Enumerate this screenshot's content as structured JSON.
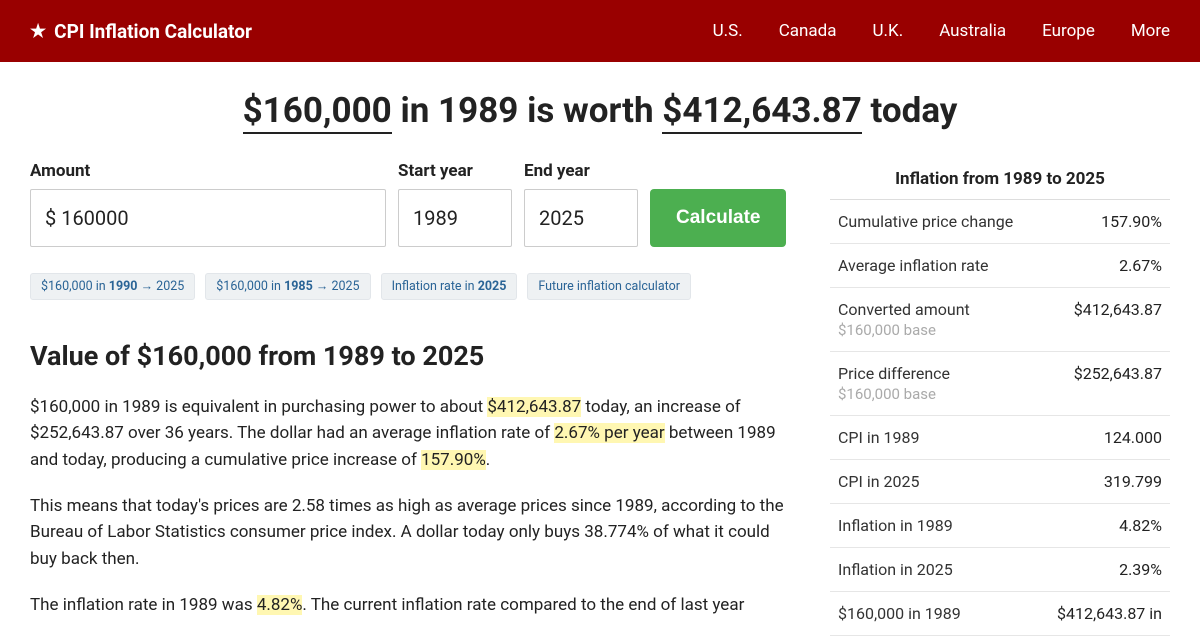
{
  "header": {
    "brand": "CPI Inflation Calculator",
    "nav": [
      "U.S.",
      "Canada",
      "U.K.",
      "Australia",
      "Europe",
      "More"
    ]
  },
  "title": {
    "amount_from": "$160,000",
    "middle": " in 1989 is worth ",
    "amount_to": "$412,643.87",
    "suffix": " today"
  },
  "form": {
    "amount_label": "Amount",
    "amount_value": "$ 160000",
    "start_label": "Start year",
    "start_value": "1989",
    "end_label": "End year",
    "end_value": "2025",
    "button": "Calculate"
  },
  "chips": [
    {
      "pre": "$160,000 in ",
      "b": "1990",
      "post": " → 2025"
    },
    {
      "pre": "$160,000 in ",
      "b": "1985",
      "post": " → 2025"
    },
    {
      "pre": "Inflation rate in ",
      "b": "2025",
      "post": ""
    },
    {
      "pre": "Future inflation calculator",
      "b": "",
      "post": ""
    }
  ],
  "section_heading": "Value of $160,000 from 1989 to 2025",
  "p1": {
    "a": "$160,000 in 1989 is equivalent in purchasing power to about ",
    "h1": "$412,643.87",
    "b": " today, an increase of $252,643.87 over 36 years. The dollar had an average inflation rate of ",
    "h2": "2.67% per year",
    "c": " between 1989 and today, producing a cumulative price increase of ",
    "h3": "157.90%",
    "d": "."
  },
  "p2": "This means that today's prices are 2.58 times as high as average prices since 1989, according to the Bureau of Labor Statistics consumer price index. A dollar today only buys 38.774% of what it could buy back then.",
  "p3": {
    "a": "The inflation rate in 1989 was ",
    "h1": "4.82%",
    "b": ". The current inflation rate compared to the end of last year"
  },
  "stats": {
    "title": "Inflation from 1989 to 2025",
    "rows": [
      {
        "label": "Cumulative price change",
        "sub": "",
        "val": "157.90%"
      },
      {
        "label": "Average inflation rate",
        "sub": "",
        "val": "2.67%"
      },
      {
        "label": "Converted amount",
        "sub": "$160,000 base",
        "val": "$412,643.87"
      },
      {
        "label": "Price difference",
        "sub": "$160,000 base",
        "val": "$252,643.87"
      },
      {
        "label": "CPI in 1989",
        "sub": "",
        "val": "124.000"
      },
      {
        "label": "CPI in 2025",
        "sub": "",
        "val": "319.799"
      },
      {
        "label": "Inflation in 1989",
        "sub": "",
        "val": "4.82%"
      },
      {
        "label": "Inflation in 2025",
        "sub": "",
        "val": "2.39%"
      },
      {
        "label": "$160,000 in 1989",
        "sub": "",
        "val": "$412,643.87 in"
      }
    ]
  }
}
